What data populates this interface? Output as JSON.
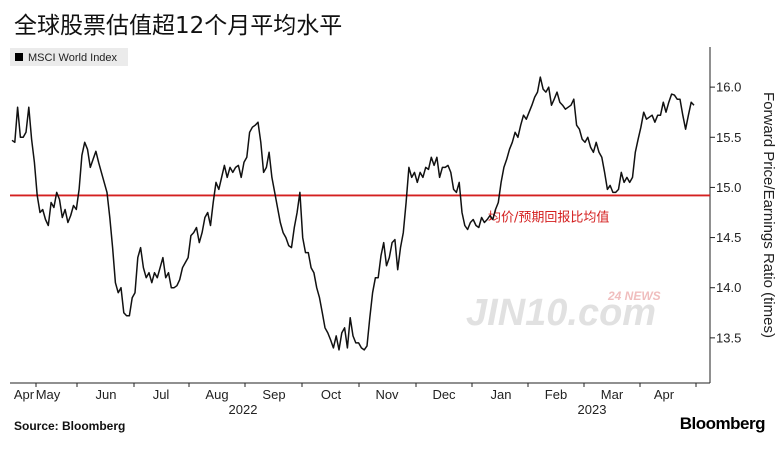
{
  "title": "全球股票估值超12个月平均水平",
  "source": "Source: Bloomberg",
  "brand": "Bloomberg",
  "watermark": {
    "text": "JIN10.com",
    "badge": "24 NEWS"
  },
  "chart_data": {
    "type": "line",
    "legend": "MSCI World Index",
    "legend_position": "top-left",
    "ylabel": "Forward Price/Earnings Ratio (times)",
    "ylim": [
      13.05,
      16.4
    ],
    "yticks": [
      13.5,
      14.0,
      14.5,
      15.0,
      15.5,
      16.0
    ],
    "x_tick_labels": [
      "Apr",
      "May",
      "Jun",
      "Jul",
      "Aug",
      "Sep",
      "Oct",
      "Nov",
      "Dec",
      "Jan",
      "Feb",
      "Mar",
      "Apr"
    ],
    "year_labels": [
      "2022",
      "2023"
    ],
    "colors": {
      "line": "#111111",
      "average": "#d42020"
    },
    "average": {
      "value": 14.92,
      "label": "均价/预期回报比均值"
    },
    "series": [
      {
        "values": [
          [
            0,
            15.47
          ],
          [
            2,
            15.45
          ],
          [
            4,
            15.8
          ],
          [
            6,
            15.5
          ],
          [
            8,
            15.5
          ],
          [
            10,
            15.55
          ],
          [
            12,
            15.8
          ],
          [
            14,
            15.48
          ],
          [
            16,
            15.25
          ],
          [
            18,
            14.92
          ],
          [
            20,
            14.75
          ],
          [
            22,
            14.78
          ],
          [
            24,
            14.68
          ],
          [
            26,
            14.62
          ],
          [
            28,
            14.85
          ],
          [
            30,
            14.8
          ],
          [
            32,
            14.95
          ],
          [
            34,
            14.88
          ],
          [
            36,
            14.7
          ],
          [
            38,
            14.78
          ],
          [
            40,
            14.65
          ],
          [
            42,
            14.72
          ],
          [
            44,
            14.82
          ],
          [
            46,
            14.78
          ],
          [
            48,
            14.98
          ],
          [
            50,
            15.32
          ],
          [
            52,
            15.45
          ],
          [
            54,
            15.38
          ],
          [
            56,
            15.2
          ],
          [
            58,
            15.28
          ],
          [
            60,
            15.36
          ],
          [
            62,
            15.25
          ],
          [
            64,
            15.15
          ],
          [
            66,
            15.05
          ],
          [
            68,
            14.95
          ],
          [
            70,
            14.7
          ],
          [
            72,
            14.4
          ],
          [
            74,
            14.05
          ],
          [
            76,
            13.95
          ],
          [
            78,
            14.0
          ],
          [
            80,
            13.75
          ],
          [
            82,
            13.72
          ],
          [
            84,
            13.72
          ],
          [
            86,
            13.9
          ],
          [
            88,
            13.95
          ],
          [
            90,
            14.3
          ],
          [
            92,
            14.4
          ],
          [
            94,
            14.2
          ],
          [
            96,
            14.1
          ],
          [
            98,
            14.15
          ],
          [
            100,
            14.05
          ],
          [
            102,
            14.15
          ],
          [
            104,
            14.1
          ],
          [
            106,
            14.2
          ],
          [
            108,
            14.3
          ],
          [
            110,
            14.1
          ],
          [
            112,
            14.15
          ],
          [
            114,
            14.0
          ],
          [
            116,
            14.0
          ],
          [
            118,
            14.02
          ],
          [
            120,
            14.08
          ],
          [
            122,
            14.2
          ],
          [
            124,
            14.25
          ],
          [
            126,
            14.3
          ],
          [
            128,
            14.52
          ],
          [
            130,
            14.55
          ],
          [
            132,
            14.6
          ],
          [
            134,
            14.45
          ],
          [
            136,
            14.55
          ],
          [
            138,
            14.7
          ],
          [
            140,
            14.75
          ],
          [
            142,
            14.62
          ],
          [
            144,
            14.85
          ],
          [
            146,
            15.05
          ],
          [
            148,
            14.98
          ],
          [
            150,
            15.1
          ],
          [
            152,
            15.22
          ],
          [
            154,
            15.1
          ],
          [
            156,
            15.2
          ],
          [
            158,
            15.15
          ],
          [
            160,
            15.2
          ],
          [
            162,
            15.22
          ],
          [
            164,
            15.1
          ],
          [
            166,
            15.25
          ],
          [
            168,
            15.3
          ],
          [
            170,
            15.55
          ],
          [
            172,
            15.6
          ],
          [
            174,
            15.62
          ],
          [
            176,
            15.65
          ],
          [
            178,
            15.45
          ],
          [
            180,
            15.15
          ],
          [
            182,
            15.2
          ],
          [
            184,
            15.35
          ],
          [
            186,
            15.1
          ],
          [
            188,
            14.95
          ],
          [
            190,
            14.8
          ],
          [
            192,
            14.65
          ],
          [
            194,
            14.55
          ],
          [
            196,
            14.5
          ],
          [
            198,
            14.42
          ],
          [
            200,
            14.4
          ],
          [
            202,
            14.6
          ],
          [
            204,
            14.75
          ],
          [
            206,
            14.95
          ],
          [
            208,
            14.5
          ],
          [
            210,
            14.35
          ],
          [
            212,
            14.35
          ],
          [
            214,
            14.2
          ],
          [
            216,
            14.15
          ],
          [
            218,
            14.0
          ],
          [
            220,
            13.9
          ],
          [
            222,
            13.75
          ],
          [
            224,
            13.6
          ],
          [
            226,
            13.55
          ],
          [
            228,
            13.48
          ],
          [
            230,
            13.4
          ],
          [
            232,
            13.52
          ],
          [
            234,
            13.38
          ],
          [
            236,
            13.55
          ],
          [
            238,
            13.6
          ],
          [
            240,
            13.4
          ],
          [
            242,
            13.7
          ],
          [
            244,
            13.52
          ],
          [
            246,
            13.45
          ],
          [
            248,
            13.45
          ],
          [
            250,
            13.4
          ],
          [
            252,
            13.38
          ],
          [
            254,
            13.42
          ],
          [
            256,
            13.7
          ],
          [
            258,
            13.95
          ],
          [
            260,
            14.1
          ],
          [
            262,
            14.1
          ],
          [
            264,
            14.32
          ],
          [
            266,
            14.45
          ],
          [
            268,
            14.22
          ],
          [
            270,
            14.3
          ],
          [
            272,
            14.45
          ],
          [
            274,
            14.48
          ],
          [
            276,
            14.18
          ],
          [
            278,
            14.4
          ],
          [
            280,
            14.55
          ],
          [
            282,
            14.85
          ],
          [
            284,
            15.2
          ],
          [
            286,
            15.1
          ],
          [
            288,
            15.15
          ],
          [
            290,
            15.05
          ],
          [
            292,
            15.15
          ],
          [
            294,
            15.1
          ],
          [
            296,
            15.2
          ],
          [
            298,
            15.18
          ],
          [
            300,
            15.3
          ],
          [
            302,
            15.22
          ],
          [
            304,
            15.3
          ],
          [
            306,
            15.1
          ],
          [
            308,
            15.2
          ],
          [
            310,
            15.2
          ],
          [
            312,
            15.22
          ],
          [
            314,
            15.15
          ],
          [
            316,
            14.98
          ],
          [
            318,
            14.95
          ],
          [
            320,
            15.05
          ],
          [
            322,
            14.75
          ],
          [
            324,
            14.62
          ],
          [
            326,
            14.58
          ],
          [
            328,
            14.65
          ],
          [
            330,
            14.68
          ],
          [
            332,
            14.62
          ],
          [
            334,
            14.6
          ],
          [
            336,
            14.7
          ],
          [
            338,
            14.65
          ],
          [
            340,
            14.68
          ],
          [
            342,
            14.72
          ],
          [
            344,
            14.68
          ],
          [
            346,
            14.78
          ],
          [
            348,
            14.85
          ],
          [
            350,
            15.05
          ],
          [
            352,
            15.2
          ],
          [
            354,
            15.28
          ],
          [
            356,
            15.38
          ],
          [
            358,
            15.45
          ],
          [
            360,
            15.55
          ],
          [
            362,
            15.5
          ],
          [
            364,
            15.62
          ],
          [
            366,
            15.72
          ],
          [
            368,
            15.68
          ],
          [
            370,
            15.75
          ],
          [
            372,
            15.82
          ],
          [
            374,
            15.9
          ],
          [
            376,
            15.95
          ],
          [
            378,
            16.1
          ],
          [
            380,
            15.98
          ],
          [
            382,
            15.95
          ],
          [
            384,
            16.0
          ],
          [
            386,
            15.82
          ],
          [
            388,
            15.88
          ],
          [
            390,
            15.95
          ],
          [
            392,
            15.85
          ],
          [
            394,
            15.82
          ],
          [
            396,
            15.78
          ],
          [
            398,
            15.8
          ],
          [
            400,
            15.82
          ],
          [
            402,
            15.88
          ],
          [
            404,
            15.62
          ],
          [
            406,
            15.58
          ],
          [
            408,
            15.48
          ],
          [
            410,
            15.45
          ],
          [
            412,
            15.5
          ],
          [
            414,
            15.4
          ],
          [
            416,
            15.35
          ],
          [
            418,
            15.45
          ],
          [
            420,
            15.35
          ],
          [
            422,
            15.3
          ],
          [
            424,
            15.15
          ],
          [
            426,
            14.98
          ],
          [
            428,
            15.02
          ],
          [
            430,
            14.95
          ],
          [
            432,
            14.95
          ],
          [
            434,
            14.98
          ],
          [
            436,
            15.15
          ],
          [
            438,
            15.05
          ],
          [
            440,
            15.1
          ],
          [
            442,
            15.05
          ],
          [
            444,
            15.1
          ],
          [
            446,
            15.35
          ],
          [
            448,
            15.48
          ],
          [
            450,
            15.6
          ],
          [
            452,
            15.75
          ],
          [
            454,
            15.68
          ],
          [
            456,
            15.7
          ],
          [
            458,
            15.72
          ],
          [
            460,
            15.65
          ],
          [
            462,
            15.72
          ],
          [
            464,
            15.72
          ],
          [
            466,
            15.85
          ],
          [
            468,
            15.75
          ],
          [
            470,
            15.85
          ],
          [
            472,
            15.93
          ],
          [
            474,
            15.92
          ],
          [
            476,
            15.88
          ],
          [
            478,
            15.88
          ],
          [
            480,
            15.72
          ],
          [
            482,
            15.58
          ],
          [
            484,
            15.72
          ],
          [
            486,
            15.85
          ],
          [
            488,
            15.82
          ]
        ]
      }
    ]
  }
}
